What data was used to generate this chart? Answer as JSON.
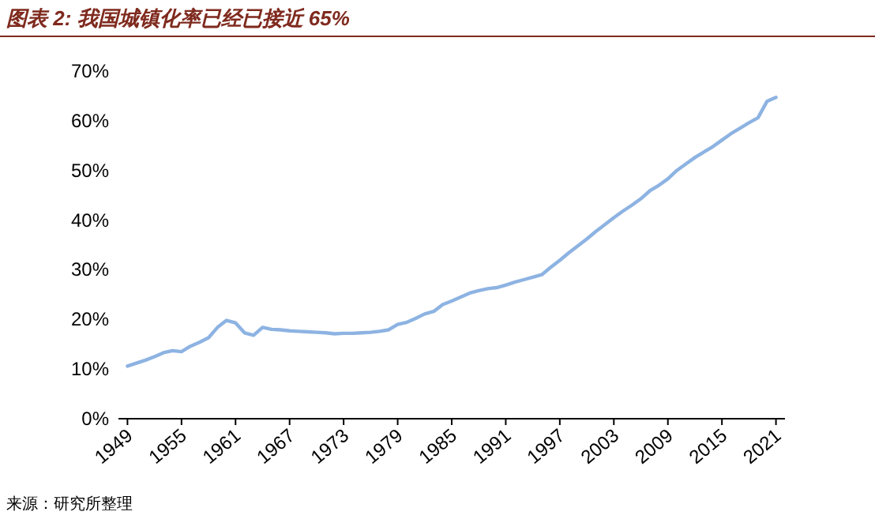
{
  "chart_data": {
    "type": "line",
    "title": "图表 2: 我国城镇化率已经已接近 65%",
    "annotations": [
      "来源：研究所整理"
    ],
    "x": [
      1949,
      1950,
      1951,
      1952,
      1953,
      1954,
      1955,
      1956,
      1957,
      1958,
      1959,
      1960,
      1961,
      1962,
      1963,
      1964,
      1965,
      1966,
      1967,
      1968,
      1969,
      1970,
      1971,
      1972,
      1973,
      1974,
      1975,
      1976,
      1977,
      1978,
      1979,
      1980,
      1981,
      1982,
      1983,
      1984,
      1985,
      1986,
      1987,
      1988,
      1989,
      1990,
      1991,
      1992,
      1993,
      1994,
      1995,
      1996,
      1997,
      1998,
      1999,
      2000,
      2001,
      2002,
      2003,
      2004,
      2005,
      2006,
      2007,
      2008,
      2009,
      2010,
      2011,
      2012,
      2013,
      2014,
      2015,
      2016,
      2017,
      2018,
      2019,
      2020,
      2021
    ],
    "values": [
      10.6,
      11.2,
      11.8,
      12.5,
      13.3,
      13.7,
      13.5,
      14.6,
      15.4,
      16.3,
      18.4,
      19.8,
      19.3,
      17.3,
      16.8,
      18.4,
      18.0,
      17.9,
      17.7,
      17.6,
      17.5,
      17.4,
      17.3,
      17.1,
      17.2,
      17.2,
      17.3,
      17.4,
      17.6,
      17.9,
      19.0,
      19.4,
      20.2,
      21.1,
      21.6,
      23.0,
      23.7,
      24.5,
      25.3,
      25.8,
      26.2,
      26.4,
      26.9,
      27.5,
      28.0,
      28.5,
      29.0,
      30.5,
      31.9,
      33.4,
      34.8,
      36.2,
      37.7,
      39.1,
      40.5,
      41.8,
      43.0,
      44.3,
      45.9,
      47.0,
      48.3,
      50.0,
      51.3,
      52.6,
      53.7,
      54.8,
      56.1,
      57.4,
      58.5,
      59.6,
      60.6,
      63.9,
      64.7
    ],
    "color": "#8db3e2",
    "xlim": [
      1948,
      2022
    ],
    "xticks": [
      1949,
      1955,
      1961,
      1967,
      1973,
      1979,
      1985,
      1991,
      1997,
      2003,
      2009,
      2015,
      2021
    ],
    "ylim": [
      0,
      70
    ],
    "yticks": [
      {
        "value": 0,
        "label": "0%"
      },
      {
        "value": 10,
        "label": "10%"
      },
      {
        "value": 20,
        "label": "20%"
      },
      {
        "value": 30,
        "label": "30%"
      },
      {
        "value": 40,
        "label": "40%"
      },
      {
        "value": 50,
        "label": "50%"
      },
      {
        "value": 60,
        "label": "60%"
      },
      {
        "value": 70,
        "label": "70%"
      }
    ]
  }
}
